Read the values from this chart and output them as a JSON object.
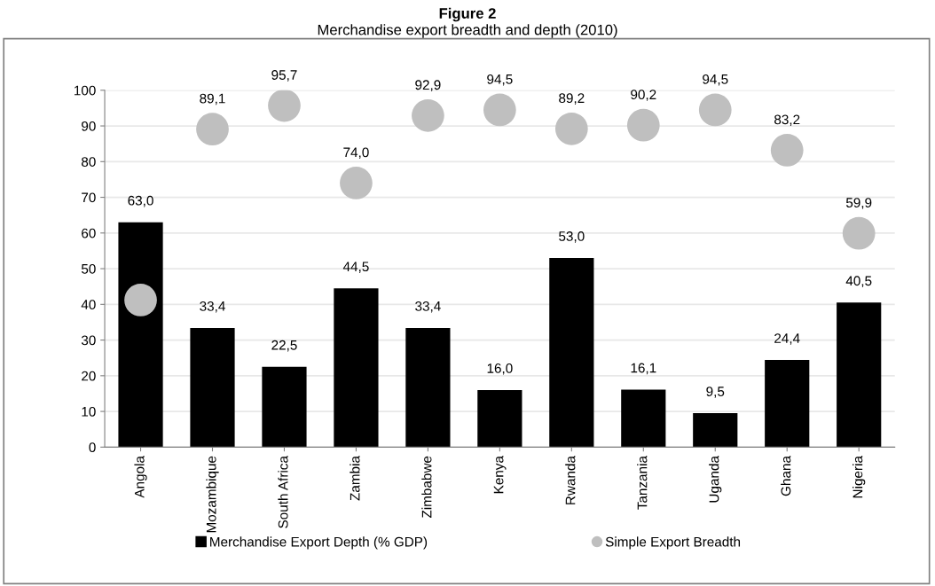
{
  "chart_data": {
    "type": "bar",
    "title": "Figure 2",
    "subtitle": "Merchandise export breadth and depth (2010)",
    "categories": [
      "Angola",
      "Mozambique",
      "South Africa",
      "Zambia",
      "Zimbabwe",
      "Kenya",
      "Rwanda",
      "Tanzania",
      "Uganda",
      "Ghana",
      "Nigeria"
    ],
    "series": [
      {
        "name": "Merchandise Export Depth (% GDP)",
        "color": "#000000",
        "values": [
          63.0,
          33.4,
          22.5,
          44.5,
          33.4,
          16.0,
          53.0,
          16.1,
          9.5,
          24.4,
          40.5
        ],
        "value_labels": [
          "63,0",
          "33,4",
          "22,5",
          "44,5",
          "33,4",
          "16,0",
          "53,0",
          "16,1",
          "9,5",
          "24,4",
          "40,5"
        ]
      },
      {
        "name": "Simple Export Breadth",
        "type": "scatter",
        "color": "#bfbfbf",
        "values": [
          41.2,
          89.1,
          95.7,
          74.0,
          92.9,
          94.5,
          89.2,
          90.2,
          94.5,
          83.2,
          59.9
        ],
        "value_labels": [
          null,
          "89,1",
          "95,7",
          "74,0",
          "92,9",
          "94,5",
          "89,2",
          "90,2",
          "94,5",
          "83,2",
          "59,9"
        ]
      }
    ],
    "ylim": [
      0,
      100
    ],
    "yticks": [
      0,
      10,
      20,
      30,
      40,
      50,
      60,
      70,
      80,
      90,
      100
    ],
    "grid": "y",
    "legend": "bottom",
    "marker": "circle"
  }
}
